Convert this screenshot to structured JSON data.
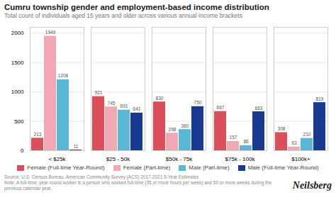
{
  "chart_data": {
    "type": "bar",
    "title": "Cumru township gender and employment-based income distribution",
    "subtitle": "Total count of individuals aged 15 years and older across various annual income brackets",
    "categories": [
      "< $25k",
      "$25 - 50k",
      "$50k - 75k",
      "$75k - 100k",
      "$100k+"
    ],
    "series": [
      {
        "name": "Female (Full-time Year-Round)",
        "color": "#d94f5c",
        "values": [
          213,
          921,
          830,
          667,
          308
        ]
      },
      {
        "name": "Female (Part-time)",
        "color": "#f2a8b4",
        "values": [
          1949,
          745,
          298,
          157,
          63
        ]
      },
      {
        "name": "Male (Part-time)",
        "color": "#5bb8d4",
        "values": [
          1208,
          691,
          360,
          86,
          210
        ]
      },
      {
        "name": "Male (Full-time Year-Round)",
        "color": "#1a3a8f",
        "values": [
          11,
          641,
          750,
          663,
          819
        ]
      }
    ],
    "ylim": [
      0,
      2100
    ],
    "yticks": [
      0,
      500,
      1000,
      1500,
      2000
    ],
    "grid": true,
    "data_labels": true,
    "legend": "bottom",
    "annotations": [
      "Source: U.S. Census Bureau, American Community Survey (ACS) 2017-2021 5-Year Estimates",
      "Note: A full-time, year-round worker is a person who worked full-time (35 or more hours per week) and 50 or more weeks during the previous calendar year.",
      "Neilsberg"
    ]
  }
}
